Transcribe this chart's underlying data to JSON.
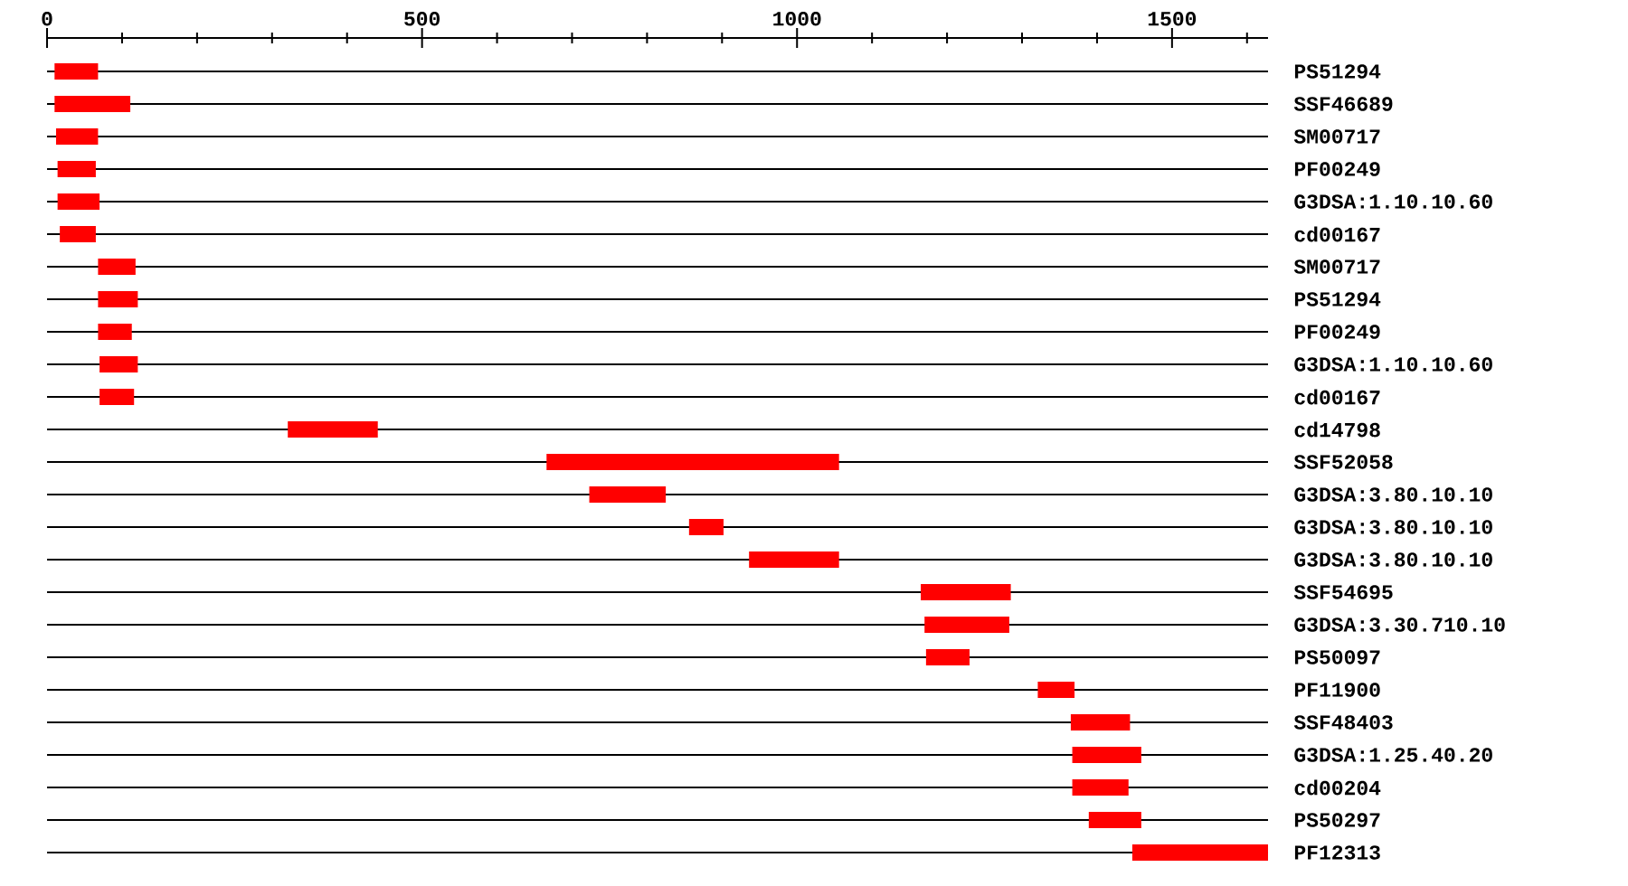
{
  "chart_data": {
    "type": "bar",
    "orientation": "horizontal",
    "categories": [
      "PS51294",
      "SSF46689",
      "SM00717",
      "PF00249",
      "G3DSA:1.10.10.60",
      "cd00167",
      "SM00717",
      "PS51294",
      "PF00249",
      "G3DSA:1.10.10.60",
      "cd00167",
      "cd14798",
      "SSF52058",
      "G3DSA:3.80.10.10",
      "G3DSA:3.80.10.10",
      "G3DSA:3.80.10.10",
      "SSF54695",
      "G3DSA:3.30.710.10",
      "PS50097",
      "PF11900",
      "SSF48403",
      "G3DSA:1.25.40.20",
      "cd00204",
      "PS50297",
      "PF12313"
    ],
    "base": [
      10,
      10,
      12,
      14,
      14,
      17,
      68,
      68,
      68,
      70,
      70,
      321,
      666,
      723,
      856,
      936,
      1165,
      1170,
      1172,
      1321,
      1365,
      1367,
      1367,
      1389,
      1447
    ],
    "values": [
      58,
      101,
      56,
      51,
      56,
      48,
      50,
      53,
      45,
      51,
      46,
      120,
      390,
      102,
      46,
      120,
      120,
      113,
      58,
      49,
      79,
      92,
      75,
      70,
      181
    ],
    "color": "#ff0000",
    "xlim": [
      0,
      1628
    ],
    "xticks": [
      0,
      {
        "value": 100,
        "label": null
      },
      {
        "value": 200,
        "label": null
      },
      {
        "value": 300,
        "label": null
      },
      {
        "value": 400,
        "label": null
      },
      500,
      {
        "value": 600,
        "label": null
      },
      {
        "value": 700,
        "label": null
      },
      {
        "value": 800,
        "label": null
      },
      {
        "value": 900,
        "label": null
      },
      1000,
      {
        "value": 1100,
        "label": null
      },
      {
        "value": 1200,
        "label": null
      },
      {
        "value": 1300,
        "label": null
      },
      {
        "value": 1400,
        "label": null
      },
      1500,
      {
        "value": 1600,
        "label": null
      }
    ],
    "grid": "y"
  }
}
